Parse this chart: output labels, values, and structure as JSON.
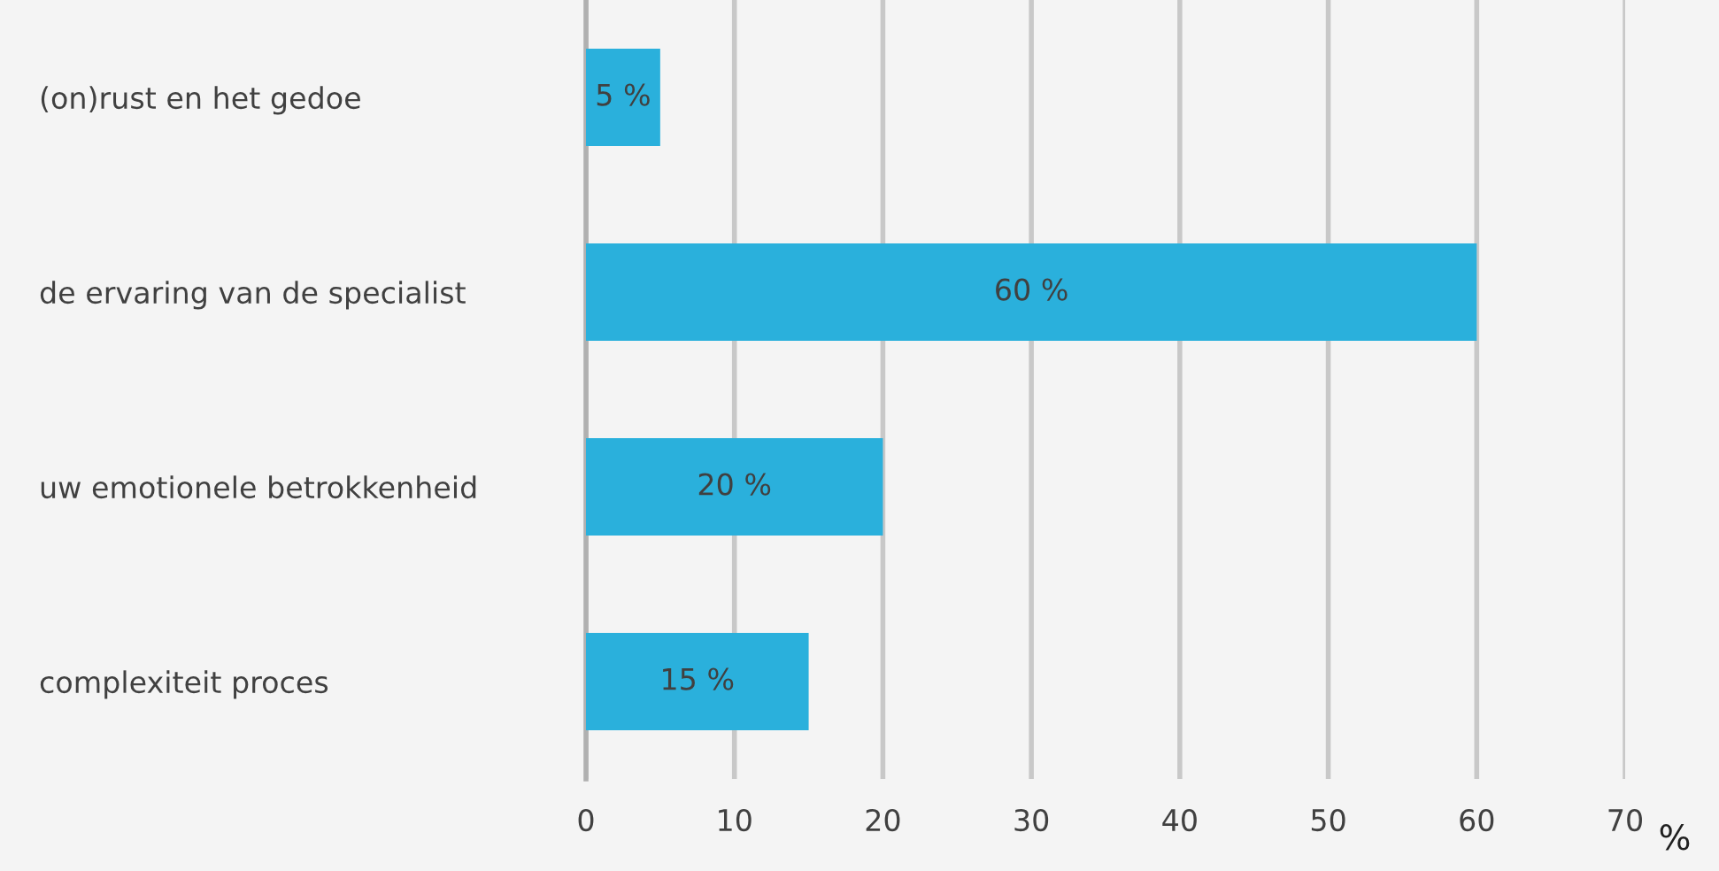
{
  "chart_data": {
    "type": "bar",
    "orientation": "horizontal",
    "xlabel": "%",
    "categories": [
      "(on)rust en het gedoe",
      "de ervaring van de specialist",
      "uw emotionele betrokkenheid",
      "complexiteit proces"
    ],
    "values": [
      5,
      60,
      20,
      15
    ],
    "color": "#2ab0dc",
    "value_labels": [
      "5 %",
      "60 %",
      "20 %",
      "15 %"
    ],
    "xlim": [
      0,
      70
    ],
    "xticks": [
      0,
      10,
      20,
      30,
      40,
      50,
      60,
      70
    ],
    "grid": "x"
  }
}
